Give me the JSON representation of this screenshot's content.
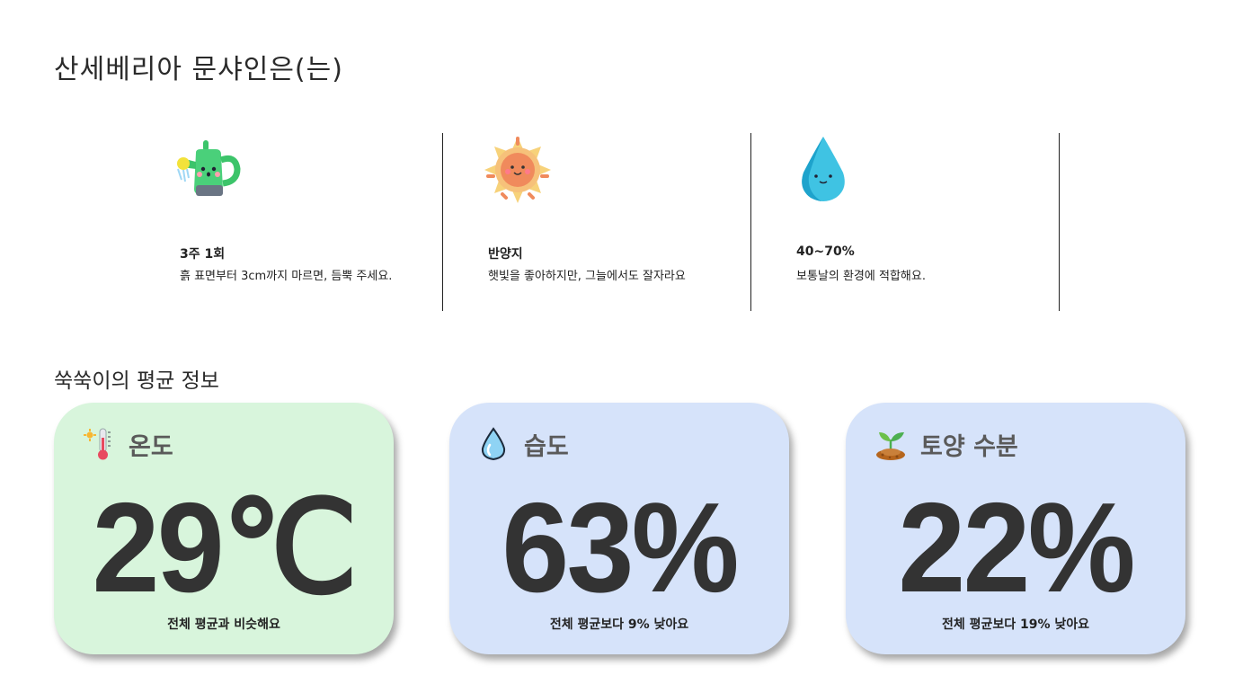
{
  "page": {
    "title": "산세베리아 문샤인은(는)"
  },
  "care": [
    {
      "icon": "watering-can-icon",
      "heading": "3주 1회",
      "description": "흙 표면부터 3cm까지 마르면, 듬뿍 주세요."
    },
    {
      "icon": "sun-icon",
      "heading": "반양지",
      "description": "햇빛을 좋아하지만, 그늘에서도 잘자라요"
    },
    {
      "icon": "water-drop-icon",
      "heading": "40~70%",
      "description": "보통날의 환경에 적합해요."
    }
  ],
  "averages": {
    "title": "쑥쑥이의 평균 정보",
    "cards": [
      {
        "icon": "thermometer-icon",
        "label": "온도",
        "value": "29℃",
        "note": "전체 평균과 비슷해요",
        "color": "#d8f5dc"
      },
      {
        "icon": "humidity-drop-icon",
        "label": "습도",
        "value": "63%",
        "note": "전체 평균보다 9% 낮아요",
        "color": "#d6e3fa"
      },
      {
        "icon": "sprout-soil-icon",
        "label": "토양 수분",
        "value": "22%",
        "note": "전체 평균보다 19% 낮아요",
        "color": "#d6e3fa"
      }
    ]
  }
}
